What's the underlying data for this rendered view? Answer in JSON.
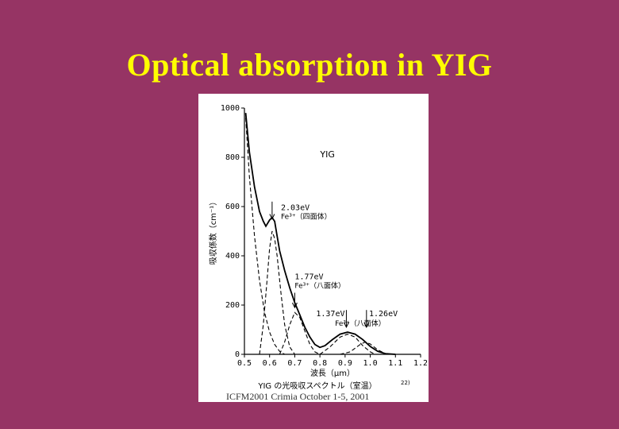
{
  "slide": {
    "title": "Optical absorption in YIG",
    "footer": "ICFM2001 Crimia October 1-5, 2001"
  },
  "chart_data": {
    "type": "line",
    "title": "YIG",
    "caption": "YIG の光吸収スペクトル（室温）",
    "caption_ref": "22)",
    "xlabel": "波長（μm）",
    "ylabel": "吸収係数（cm⁻¹）",
    "xlim": [
      0.5,
      1.2
    ],
    "ylim": [
      0,
      1000
    ],
    "x_ticks": [
      "0.5",
      "0.6",
      "0.7",
      "0.8",
      "0.9",
      "1.0",
      "1.1",
      "1.2"
    ],
    "y_ticks": [
      "0",
      "200",
      "400",
      "600",
      "800",
      "1000"
    ],
    "grid": false,
    "series": [
      {
        "style": "solid",
        "points": [
          [
            0.505,
            980
          ],
          [
            0.52,
            820
          ],
          [
            0.54,
            680
          ],
          [
            0.56,
            580
          ],
          [
            0.575,
            540
          ],
          [
            0.585,
            520
          ],
          [
            0.6,
            545
          ],
          [
            0.61,
            555
          ],
          [
            0.62,
            540
          ],
          [
            0.63,
            480
          ],
          [
            0.64,
            420
          ],
          [
            0.66,
            340
          ],
          [
            0.68,
            270
          ],
          [
            0.7,
            210
          ],
          [
            0.72,
            160
          ],
          [
            0.74,
            110
          ],
          [
            0.76,
            70
          ],
          [
            0.78,
            40
          ],
          [
            0.8,
            28
          ],
          [
            0.82,
            35
          ],
          [
            0.85,
            60
          ],
          [
            0.88,
            82
          ],
          [
            0.91,
            90
          ],
          [
            0.94,
            82
          ],
          [
            0.97,
            60
          ],
          [
            1.0,
            32
          ],
          [
            1.03,
            12
          ],
          [
            1.06,
            3
          ],
          [
            1.1,
            0
          ]
        ]
      },
      {
        "style": "dashed",
        "points": [
          [
            0.505,
            960
          ],
          [
            0.52,
            720
          ],
          [
            0.54,
            480
          ],
          [
            0.56,
            300
          ],
          [
            0.58,
            170
          ],
          [
            0.6,
            90
          ],
          [
            0.62,
            40
          ],
          [
            0.64,
            12
          ],
          [
            0.66,
            0
          ]
        ]
      },
      {
        "style": "dashed",
        "points": [
          [
            0.56,
            0
          ],
          [
            0.575,
            120
          ],
          [
            0.59,
            300
          ],
          [
            0.6,
            430
          ],
          [
            0.61,
            500
          ],
          [
            0.62,
            470
          ],
          [
            0.63,
            400
          ],
          [
            0.645,
            250
          ],
          [
            0.66,
            120
          ],
          [
            0.68,
            30
          ],
          [
            0.7,
            0
          ]
        ]
      },
      {
        "style": "dashed",
        "points": [
          [
            0.64,
            0
          ],
          [
            0.66,
            50
          ],
          [
            0.68,
            120
          ],
          [
            0.7,
            170
          ],
          [
            0.72,
            150
          ],
          [
            0.74,
            95
          ],
          [
            0.76,
            40
          ],
          [
            0.78,
            10
          ],
          [
            0.8,
            0
          ]
        ]
      },
      {
        "style": "dashed",
        "points": [
          [
            0.8,
            0
          ],
          [
            0.84,
            30
          ],
          [
            0.88,
            70
          ],
          [
            0.91,
            82
          ],
          [
            0.94,
            70
          ],
          [
            0.97,
            35
          ],
          [
            1.0,
            10
          ],
          [
            1.02,
            0
          ]
        ]
      },
      {
        "style": "dashed",
        "points": [
          [
            0.88,
            0
          ],
          [
            0.92,
            10
          ],
          [
            0.96,
            40
          ],
          [
            0.98,
            50
          ],
          [
            1.0,
            42
          ],
          [
            1.03,
            18
          ],
          [
            1.06,
            3
          ],
          [
            1.08,
            0
          ]
        ]
      }
    ],
    "annotations": [
      {
        "line1": "2.03eV",
        "line2": "Fe³⁺（四面体）",
        "arrow_x": 0.61,
        "arrow_y0": 620,
        "arrow_y1": 550
      },
      {
        "line1": "1.77eV",
        "line2": "Fe³⁺（八面体）",
        "arrow_x": 0.7,
        "arrow_y0": 250,
        "arrow_y1": 190
      },
      {
        "line1": "1.37eV",
        "line2": "",
        "arrow_x": 0.905,
        "arrow_y0": 180,
        "arrow_y1": 110
      },
      {
        "line1": "1.26eV",
        "line2": "Fe³⁺（八面体）",
        "arrow_x": 0.985,
        "arrow_y0": 180,
        "arrow_y1": 110
      }
    ]
  }
}
